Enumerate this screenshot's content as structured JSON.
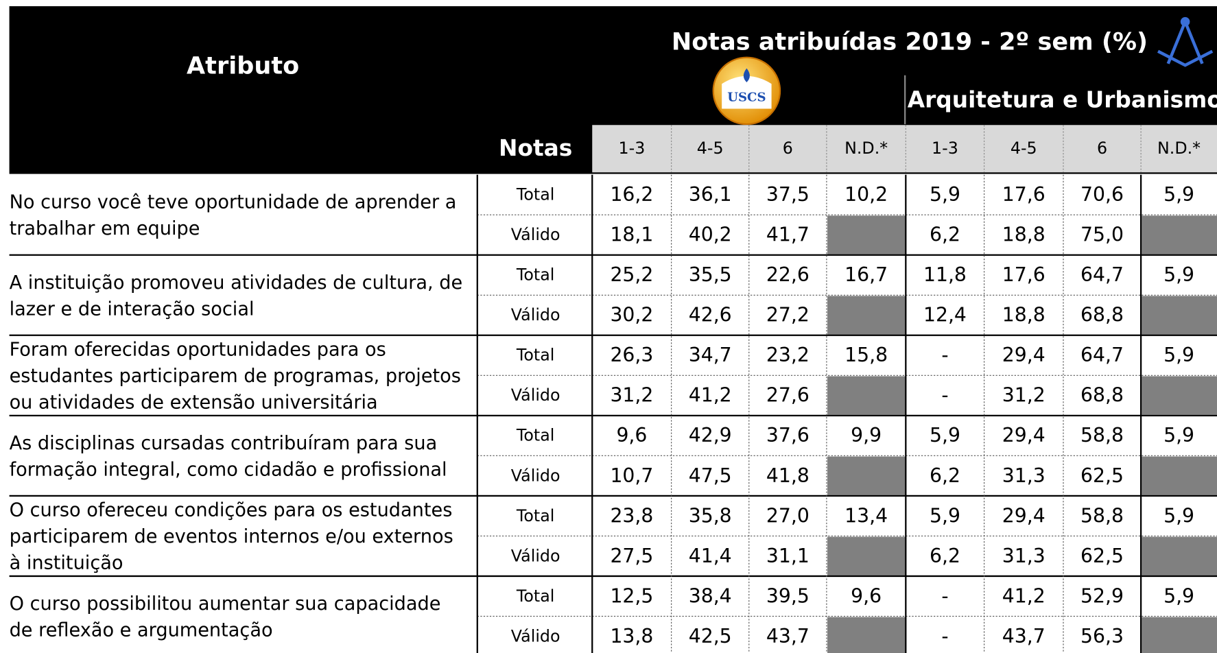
{
  "header": {
    "attribute_label": "Atributo",
    "title": "Notas atribuídas 2019 - 2º sem (%)",
    "logo_text": "USCS",
    "course": "Arquitetura e Urbanismo",
    "notas_label": "Notas",
    "columns": [
      "1-3",
      "4-5",
      "6",
      "N.D.*",
      "1-3",
      "4-5",
      "6",
      "N.D.*"
    ]
  },
  "rows": [
    {
      "attribute": [
        "No curso você teve oportunidade de aprender a",
        "trabalhar em equipe"
      ],
      "lines": [
        {
          "label": "Total",
          "values": [
            "16,2",
            "36,1",
            "37,5",
            "10,2",
            "5,9",
            "17,6",
            "70,6",
            "5,9"
          ]
        },
        {
          "label": "Válido",
          "values": [
            "18,1",
            "40,2",
            "41,7",
            null,
            "6,2",
            "18,8",
            "75,0",
            null
          ]
        }
      ]
    },
    {
      "attribute": [
        "A instituição promoveu atividades de cultura, de",
        "lazer e de interação social"
      ],
      "lines": [
        {
          "label": "Total",
          "values": [
            "25,2",
            "35,5",
            "22,6",
            "16,7",
            "11,8",
            "17,6",
            "64,7",
            "5,9"
          ]
        },
        {
          "label": "Válido",
          "values": [
            "30,2",
            "42,6",
            "27,2",
            null,
            "12,4",
            "18,8",
            "68,8",
            null
          ]
        }
      ]
    },
    {
      "attribute": [
        "Foram oferecidas oportunidades para os",
        "estudantes participarem de programas, projetos",
        "ou atividades de extensão universitária"
      ],
      "lines": [
        {
          "label": "Total",
          "values": [
            "26,3",
            "34,7",
            "23,2",
            "15,8",
            "-",
            "29,4",
            "64,7",
            "5,9"
          ]
        },
        {
          "label": "Válido",
          "values": [
            "31,2",
            "41,2",
            "27,6",
            null,
            "-",
            "31,2",
            "68,8",
            null
          ]
        }
      ]
    },
    {
      "attribute": [
        "As disciplinas cursadas contribuíram para sua",
        "formação integral, como cidadão e profissional"
      ],
      "lines": [
        {
          "label": "Total",
          "values": [
            "9,6",
            "42,9",
            "37,6",
            "9,9",
            "5,9",
            "29,4",
            "58,8",
            "5,9"
          ]
        },
        {
          "label": "Válido",
          "values": [
            "10,7",
            "47,5",
            "41,8",
            null,
            "6,2",
            "31,3",
            "62,5",
            null
          ]
        }
      ]
    },
    {
      "attribute": [
        "O curso ofereceu condições para os estudantes",
        "participarem de eventos internos e/ou externos",
        "à instituição"
      ],
      "lines": [
        {
          "label": "Total",
          "values": [
            "23,8",
            "35,8",
            "27,0",
            "13,4",
            "5,9",
            "29,4",
            "58,8",
            "5,9"
          ]
        },
        {
          "label": "Válido",
          "values": [
            "27,5",
            "41,4",
            "31,1",
            null,
            "6,2",
            "31,3",
            "62,5",
            null
          ]
        }
      ]
    },
    {
      "attribute": [
        "O curso possibilitou aumentar sua capacidade",
        "de reflexão e argumentação"
      ],
      "lines": [
        {
          "label": "Total",
          "values": [
            "12,5",
            "38,4",
            "39,5",
            "9,6",
            "-",
            "41,2",
            "52,9",
            "5,9"
          ]
        },
        {
          "label": "Válido",
          "values": [
            "13,8",
            "42,5",
            "43,7",
            null,
            "-",
            "43,7",
            "56,3",
            null
          ]
        }
      ]
    }
  ]
}
